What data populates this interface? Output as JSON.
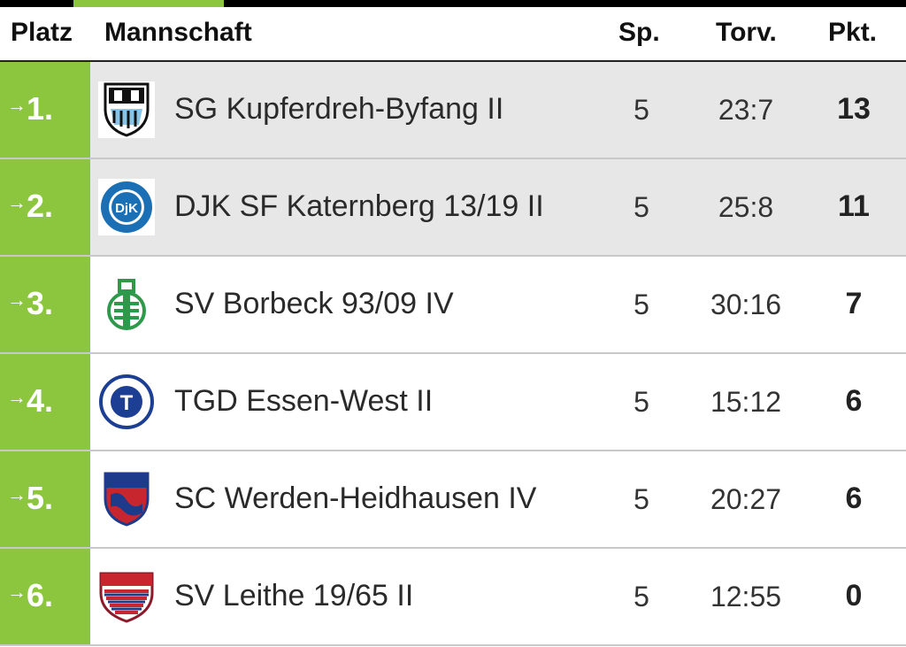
{
  "header": {
    "platz": "Platz",
    "mannschaft": "Mannschaft",
    "sp": "Sp.",
    "torv": "Torv.",
    "pkt": "Pkt."
  },
  "colors": {
    "accent": "#8cc63f",
    "highlight_row": "#e7e7e7"
  },
  "rows": [
    {
      "arrow": "→",
      "rank": "1.",
      "team": "SG Kupferdreh-Byfang II",
      "sp": "5",
      "torv": "23:7",
      "pkt": "13",
      "logo_icon": "sg-kupferdreh-crest-icon"
    },
    {
      "arrow": "→",
      "rank": "2.",
      "team": "DJK SF Katernberg 13/19 II",
      "sp": "5",
      "torv": "25:8",
      "pkt": "11",
      "logo_icon": "djk-katernberg-crest-icon",
      "logo_text": "DjK"
    },
    {
      "arrow": "→",
      "rank": "3.",
      "team": "SV Borbeck 93/09 IV",
      "sp": "5",
      "torv": "30:16",
      "pkt": "7",
      "logo_icon": "sv-borbeck-crest-icon"
    },
    {
      "arrow": "→",
      "rank": "4.",
      "team": "TGD Essen-West II",
      "sp": "5",
      "torv": "15:12",
      "pkt": "6",
      "logo_icon": "tgd-essen-west-crest-icon",
      "logo_text": "T"
    },
    {
      "arrow": "→",
      "rank": "5.",
      "team": "SC Werden-Heidhausen IV",
      "sp": "5",
      "torv": "20:27",
      "pkt": "6",
      "logo_icon": "sc-werden-heidhausen-crest-icon"
    },
    {
      "arrow": "→",
      "rank": "6.",
      "team": "SV Leithe 19/65 II",
      "sp": "5",
      "torv": "12:55",
      "pkt": "0",
      "logo_icon": "sv-leithe-crest-icon"
    }
  ]
}
